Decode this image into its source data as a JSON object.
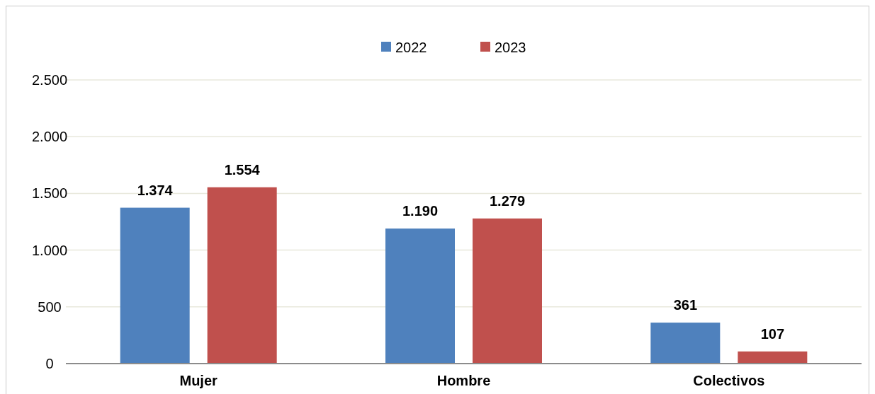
{
  "chart_data": {
    "type": "bar",
    "categories": [
      "Mujer",
      "Hombre",
      "Colectivos"
    ],
    "series": [
      {
        "name": "2022",
        "color": "#4f81bd",
        "values": [
          1374,
          1190,
          361
        ],
        "value_labels": [
          "1.374",
          "1.190",
          "361"
        ]
      },
      {
        "name": "2023",
        "color": "#c0504d",
        "values": [
          1554,
          1279,
          107
        ],
        "value_labels": [
          "1.554",
          "1.279",
          "107"
        ]
      }
    ],
    "ylim": [
      0,
      2500
    ],
    "yticks": [
      0,
      500,
      {
        "value": 1000,
        "label": "1.000"
      },
      {
        "value": 1500,
        "label": "1.500"
      },
      {
        "value": 2000,
        "label": "2.000"
      },
      {
        "value": 2500,
        "label": "2.500"
      }
    ],
    "grid": "y",
    "legend": "top"
  }
}
